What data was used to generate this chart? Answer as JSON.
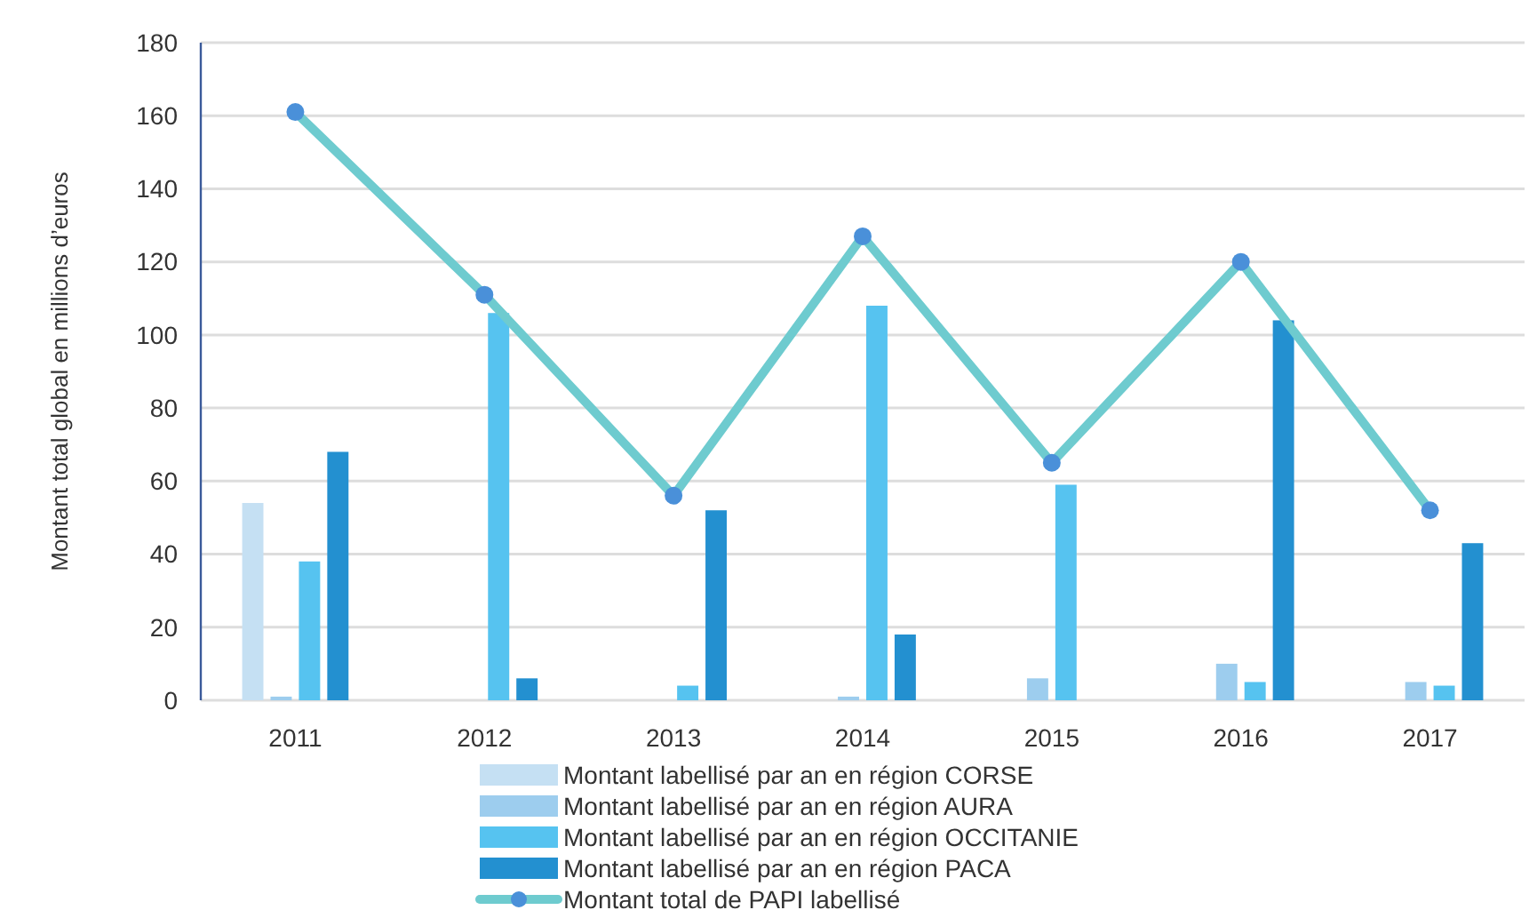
{
  "chart_data": {
    "type": "bar",
    "ylabel": "Montant total global en millions d’euros",
    "categories": [
      "2011",
      "2012",
      "2013",
      "2014",
      "2015",
      "2016",
      "2017"
    ],
    "series": [
      {
        "name": "Montant labellisé par an en région CORSE",
        "color": "#c5e0f3",
        "values": [
          54,
          null,
          null,
          null,
          null,
          null,
          null
        ]
      },
      {
        "name": "Montant labellisé par an en région AURA",
        "color": "#9dcdee",
        "values": [
          1,
          null,
          null,
          1,
          6,
          10,
          5
        ]
      },
      {
        "name": "Montant labellisé par an en région OCCITANIE",
        "color": "#56c3f0",
        "values": [
          38,
          106,
          4,
          108,
          59,
          5,
          4
        ]
      },
      {
        "name": "Montant labellisé par an en région PACA",
        "color": "#2390d0",
        "values": [
          68,
          6,
          52,
          18,
          null,
          104,
          43
        ]
      },
      {
        "name": "Montant total de PAPI labellisé",
        "type": "line",
        "color": "#6ecbcf",
        "values": [
          161,
          111,
          56,
          127,
          65,
          120,
          52
        ]
      }
    ],
    "ylim": [
      0,
      180
    ],
    "yticks": [
      0,
      20,
      40,
      60,
      80,
      100,
      120,
      140,
      160,
      180
    ],
    "grid": "y",
    "legend": "bottom",
    "marker": "circle"
  }
}
